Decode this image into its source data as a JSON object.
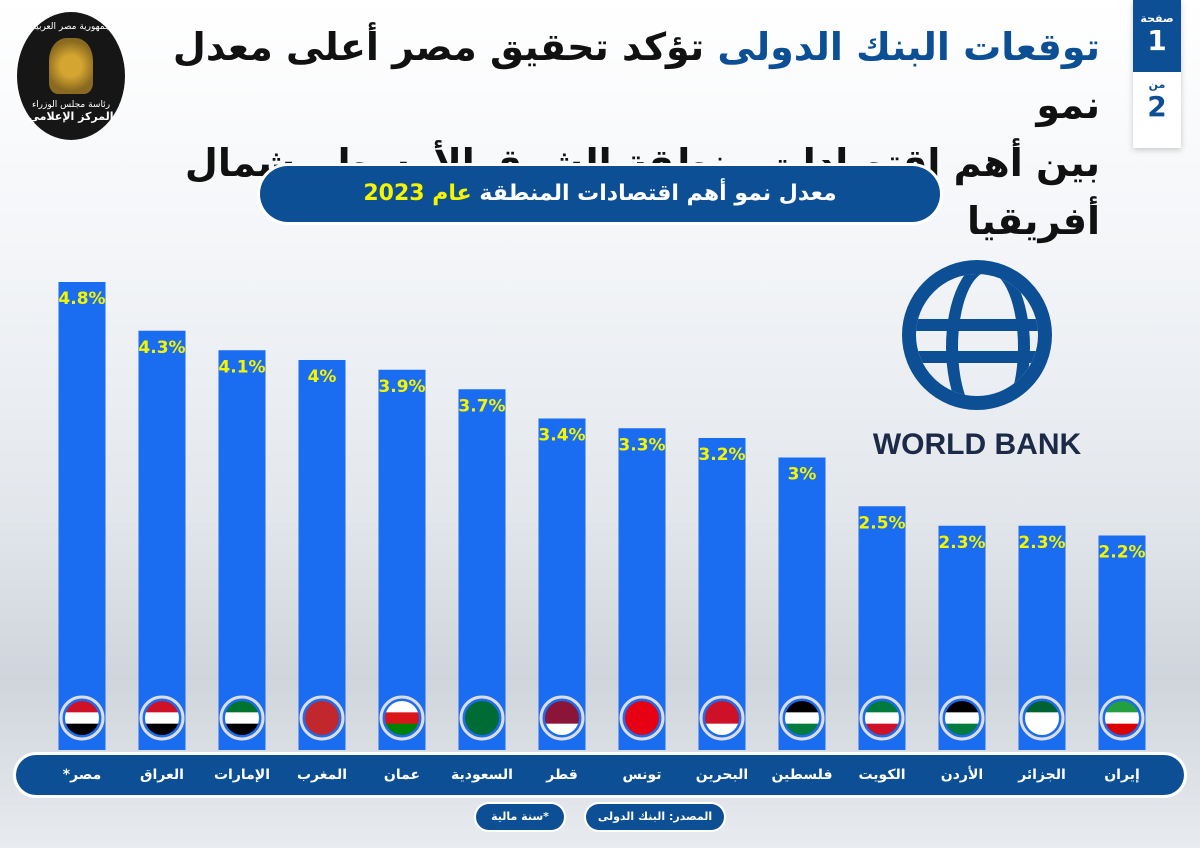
{
  "header": {
    "title_blue": "توقعات البنك الدولى",
    "title_black": "تؤكد تحقيق مصر أعلى معدل نمو",
    "title_line2": "بين أهم اقتصادات منطقة الشرق الأوسط وشمال أفريقيا",
    "page_label": "صفحة",
    "page_current": "1",
    "page_of": "من",
    "page_total": "2",
    "logo_top": "جمهورية مصر العربية",
    "logo_middle": "رئاسة مجلس الوزراء",
    "logo_bottom": "المركز الإعلامي"
  },
  "subtitle": {
    "main": "معدل نمو أهم اقتصادات المنطقة",
    "year": "عام 2023"
  },
  "world_bank": {
    "text": "WORLD BANK"
  },
  "footer": {
    "source": "المصدر: البنك الدولى",
    "note": "*سنة مالية"
  },
  "colors": {
    "bar": "#1a6cf0",
    "label": "#f5f500",
    "dark_blue": "#0d4f94"
  },
  "chart_data": {
    "type": "bar",
    "title": "معدل نمو أهم اقتصادات المنطقة عام 2023",
    "categories": [
      "مصر*",
      "العراق",
      "الإمارات",
      "المغرب",
      "عمان",
      "السعودية",
      "قطر",
      "تونس",
      "البحرين",
      "فلسطين",
      "الكويت",
      "الأردن",
      "الجزائر",
      "إيران"
    ],
    "values": [
      4.8,
      4.3,
      4.1,
      4,
      3.9,
      3.7,
      3.4,
      3.3,
      3.2,
      3,
      2.5,
      2.3,
      2.3,
      2.2
    ],
    "data_labels": [
      "4.8%",
      "4.3%",
      "4.1%",
      "4%",
      "3.9%",
      "3.7%",
      "3.4%",
      "3.3%",
      "3.2%",
      "3%",
      "2.5%",
      "2.3%",
      "2.3%",
      "2.2%"
    ],
    "unit": "%",
    "grid": false,
    "flag_colors": [
      [
        "#ce1126",
        "#ffffff",
        "#000000"
      ],
      [
        "#ce1126",
        "#ffffff",
        "#000000"
      ],
      [
        "#00732f",
        "#ffffff",
        "#000000"
      ],
      [
        "#c1272d",
        "#c1272d",
        "#c1272d"
      ],
      [
        "#ffffff",
        "#db161b",
        "#008000"
      ],
      [
        "#006c35",
        "#006c35",
        "#006c35"
      ],
      [
        "#8a1538",
        "#8a1538",
        "#ffffff"
      ],
      [
        "#e70013",
        "#e70013",
        "#e70013"
      ],
      [
        "#ce1126",
        "#ce1126",
        "#ffffff"
      ],
      [
        "#000000",
        "#ffffff",
        "#007a3d"
      ],
      [
        "#007a3d",
        "#ffffff",
        "#ce1126"
      ],
      [
        "#000000",
        "#ffffff",
        "#007a3d"
      ],
      [
        "#006233",
        "#ffffff",
        "#ffffff"
      ],
      [
        "#239f40",
        "#ffffff",
        "#da0000"
      ]
    ]
  }
}
